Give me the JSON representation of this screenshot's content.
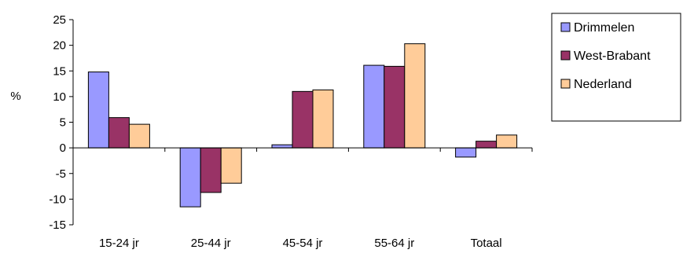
{
  "chart_data": {
    "type": "bar",
    "ylabel": "%",
    "ylim": [
      -15,
      25
    ],
    "yticks": [
      -15,
      -10,
      -5,
      0,
      5,
      10,
      15,
      20,
      25
    ],
    "grid": false,
    "legend_position": "top-right",
    "categories": [
      "15-24 jr",
      "25-44 jr",
      "45-54 jr",
      "55-64 jr",
      "Totaal"
    ],
    "series": [
      {
        "name": "Drimmelen",
        "color": "#9999ff",
        "values": [
          14.8,
          -11.5,
          0.6,
          16.1,
          -1.8
        ]
      },
      {
        "name": "West-Brabant",
        "color": "#993366",
        "values": [
          5.9,
          -8.7,
          11.0,
          15.9,
          1.3
        ]
      },
      {
        "name": "Nederland",
        "color": "#ffcc99",
        "values": [
          4.6,
          -6.9,
          11.3,
          20.3,
          2.5
        ]
      }
    ]
  }
}
